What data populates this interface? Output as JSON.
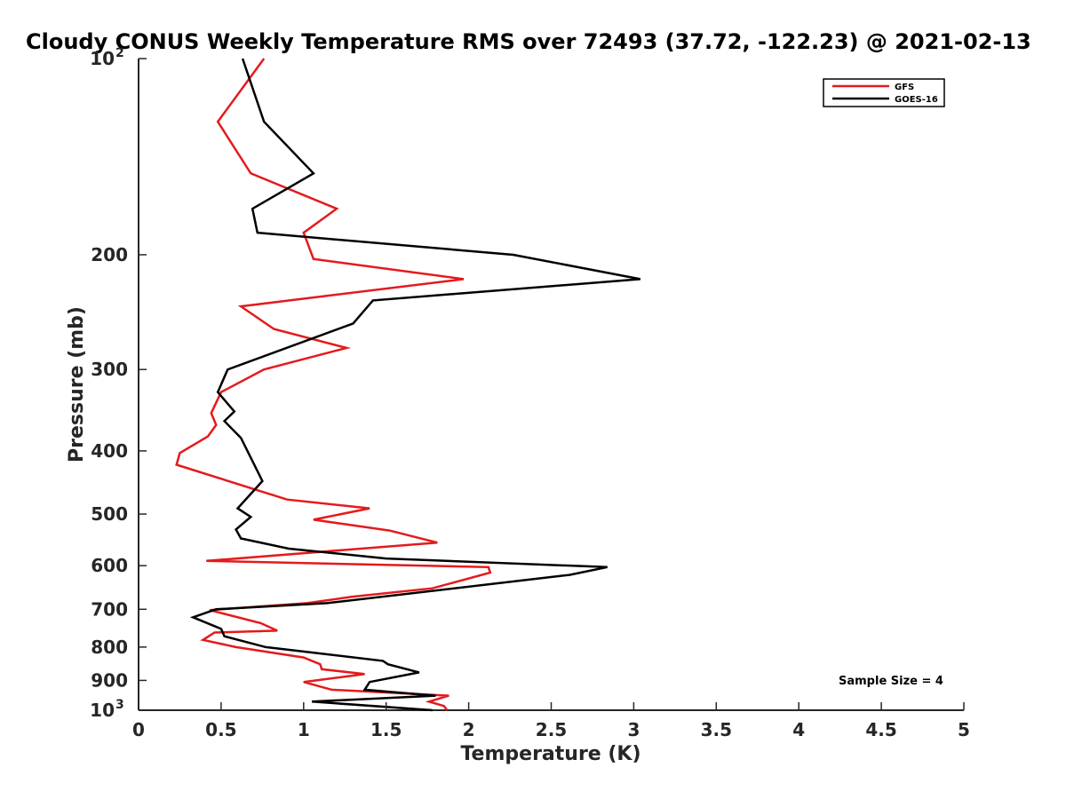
{
  "chart_data": {
    "type": "line",
    "title": "Cloudy CONUS Weekly Temperature RMS over 72493 (37.72, -122.23) @ 2021-02-13",
    "xlabel": "Temperature (K)",
    "ylabel": "Pressure (mb)",
    "xlim": [
      0,
      5
    ],
    "ylim": [
      100,
      1000
    ],
    "yscale": "log",
    "y_reversed": true,
    "x_ticks": [
      "0",
      "0.5",
      "1",
      "1.5",
      "2",
      "2.5",
      "3",
      "3.5",
      "4",
      "4.5",
      "5"
    ],
    "y_ticks": [
      {
        "value": 100,
        "base": "10",
        "exp": "2"
      },
      {
        "value": 200,
        "label": "200"
      },
      {
        "value": 300,
        "label": "300"
      },
      {
        "value": 400,
        "label": "400"
      },
      {
        "value": 500,
        "label": "500"
      },
      {
        "value": 600,
        "label": "600"
      },
      {
        "value": 700,
        "label": "700"
      },
      {
        "value": 800,
        "label": "800"
      },
      {
        "value": 900,
        "label": "900"
      },
      {
        "value": 1000,
        "base": "10",
        "exp": "3"
      }
    ],
    "grid": false,
    "legend_position": "top-right",
    "annotation": "Sample Size = 4",
    "series": [
      {
        "name": "GFS",
        "color": "#e41a1c",
        "points": [
          [
            0.76,
            100
          ],
          [
            0.48,
            125
          ],
          [
            0.68,
            150
          ],
          [
            1.2,
            170
          ],
          [
            1.0,
            185
          ],
          [
            1.06,
            203
          ],
          [
            1.97,
            218
          ],
          [
            0.62,
            240
          ],
          [
            0.82,
            260
          ],
          [
            1.26,
            278
          ],
          [
            0.76,
            300
          ],
          [
            0.5,
            325
          ],
          [
            0.44,
            350
          ],
          [
            0.47,
            365
          ],
          [
            0.42,
            380
          ],
          [
            0.25,
            403
          ],
          [
            0.23,
            420
          ],
          [
            0.9,
            475
          ],
          [
            1.4,
            490
          ],
          [
            1.06,
            510
          ],
          [
            1.52,
            530
          ],
          [
            1.81,
            553
          ],
          [
            0.41,
            590
          ],
          [
            2.12,
            603
          ],
          [
            2.13,
            615
          ],
          [
            1.78,
            650
          ],
          [
            1.29,
            670
          ],
          [
            1.02,
            685
          ],
          [
            0.43,
            702
          ],
          [
            0.74,
            735
          ],
          [
            0.84,
            755
          ],
          [
            0.46,
            760
          ],
          [
            0.39,
            780
          ],
          [
            0.59,
            800
          ],
          [
            1.0,
            830
          ],
          [
            1.1,
            850
          ],
          [
            1.11,
            865
          ],
          [
            1.37,
            880
          ],
          [
            1.0,
            905
          ],
          [
            1.17,
            930
          ],
          [
            1.88,
            950
          ],
          [
            1.76,
            970
          ],
          [
            1.85,
            985
          ],
          [
            1.87,
            1000
          ]
        ]
      },
      {
        "name": "GOES-16",
        "color": "#000000",
        "points": [
          [
            0.63,
            100
          ],
          [
            0.76,
            125
          ],
          [
            1.06,
            150
          ],
          [
            0.69,
            170
          ],
          [
            0.72,
            185
          ],
          [
            2.27,
            200
          ],
          [
            3.04,
            218
          ],
          [
            1.42,
            235
          ],
          [
            1.3,
            255
          ],
          [
            0.54,
            300
          ],
          [
            0.48,
            325
          ],
          [
            0.58,
            348
          ],
          [
            0.52,
            360
          ],
          [
            0.62,
            382
          ],
          [
            0.75,
            445
          ],
          [
            0.6,
            490
          ],
          [
            0.68,
            505
          ],
          [
            0.59,
            528
          ],
          [
            0.62,
            545
          ],
          [
            0.91,
            565
          ],
          [
            1.5,
            585
          ],
          [
            2.84,
            603
          ],
          [
            2.61,
            620
          ],
          [
            1.14,
            685
          ],
          [
            0.47,
            700
          ],
          [
            0.33,
            720
          ],
          [
            0.5,
            750
          ],
          [
            0.52,
            770
          ],
          [
            0.77,
            800
          ],
          [
            1.48,
            840
          ],
          [
            1.51,
            850
          ],
          [
            1.7,
            875
          ],
          [
            1.4,
            905
          ],
          [
            1.37,
            930
          ],
          [
            1.8,
            950
          ],
          [
            1.05,
            970
          ],
          [
            1.78,
            1000
          ]
        ]
      }
    ]
  }
}
